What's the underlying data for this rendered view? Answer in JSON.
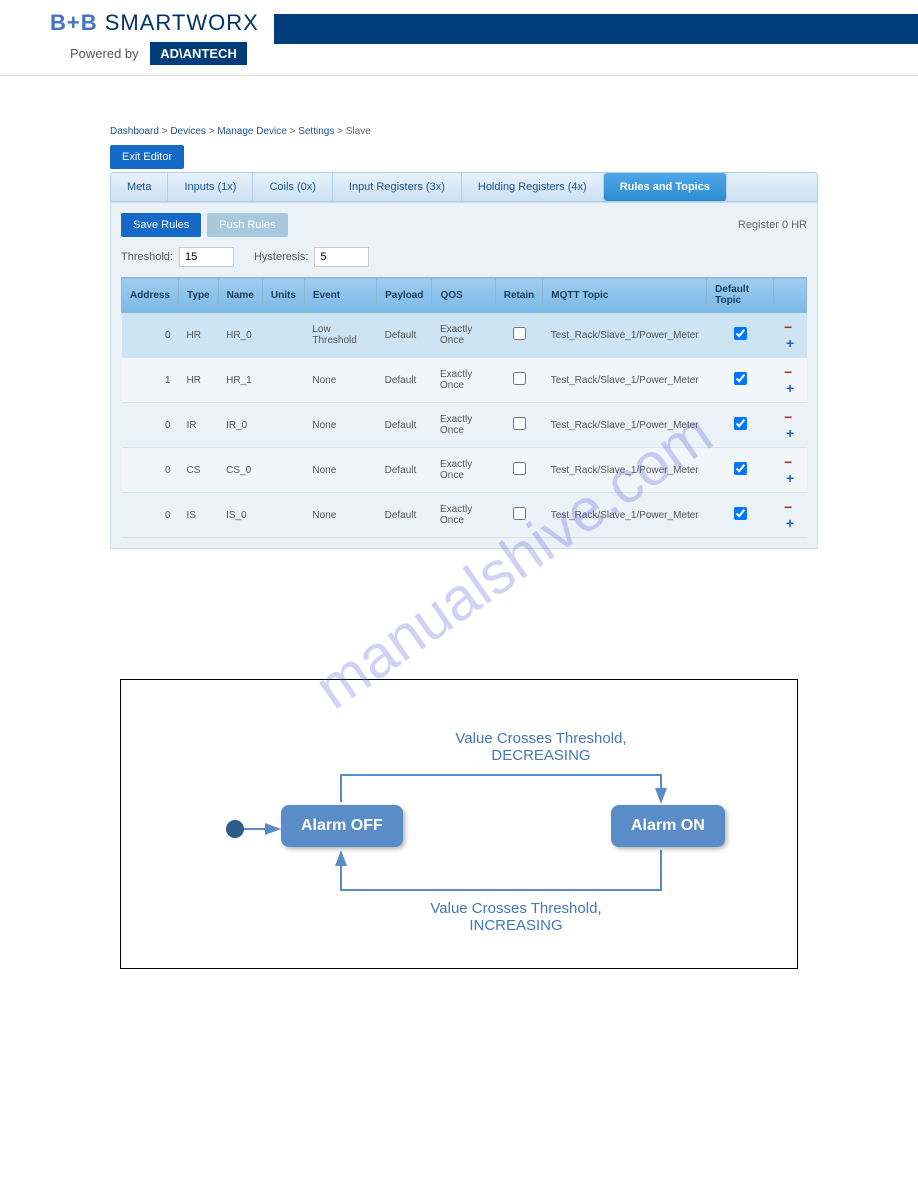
{
  "header": {
    "logo_prefix": "B+B",
    "logo_main": "SMARTWORX",
    "powered_by": "Powered by",
    "advantech": "AD\\ANTECH"
  },
  "breadcrumb": {
    "items": [
      "Dashboard",
      "Devices",
      "Manage Device",
      "Settings",
      "Slave"
    ]
  },
  "buttons": {
    "exit_editor": "Exit Editor",
    "save_rules": "Save Rules",
    "push_rules": "Push Rules"
  },
  "tabs": {
    "items": [
      {
        "label": "Meta",
        "active": false
      },
      {
        "label": "Inputs (1x)",
        "active": false
      },
      {
        "label": "Coils (0x)",
        "active": false
      },
      {
        "label": "Input Registers (3x)",
        "active": false
      },
      {
        "label": "Holding Registers (4x)",
        "active": false
      },
      {
        "label": "Rules and Topics",
        "active": true
      }
    ]
  },
  "register_label": "Register 0 HR",
  "threshold": {
    "label": "Threshold:",
    "value": "15",
    "hyst_label": "Hysteresis:",
    "hyst_value": "5"
  },
  "table": {
    "columns": [
      "Address",
      "Type",
      "Name",
      "Units",
      "Event",
      "Payload",
      "QOS",
      "Retain",
      "MQTT Topic",
      "Default Topic",
      ""
    ],
    "rows": [
      {
        "address": "0",
        "type": "HR",
        "name": "HR_0",
        "units": "",
        "event": "Low Threshold",
        "payload": "Default",
        "qos": "Exactly Once",
        "retain": false,
        "topic": "Test_Rack/Slave_1/Power_Meter",
        "default": true,
        "selected": true
      },
      {
        "address": "1",
        "type": "HR",
        "name": "HR_1",
        "units": "",
        "event": "None",
        "payload": "Default",
        "qos": "Exactly Once",
        "retain": false,
        "topic": "Test_Rack/Slave_1/Power_Meter",
        "default": true,
        "selected": false
      },
      {
        "address": "0",
        "type": "IR",
        "name": "IR_0",
        "units": "",
        "event": "None",
        "payload": "Default",
        "qos": "Exactly Once",
        "retain": false,
        "topic": "Test_Rack/Slave_1/Power_Meter",
        "default": true,
        "selected": false
      },
      {
        "address": "0",
        "type": "CS",
        "name": "CS_0",
        "units": "",
        "event": "None",
        "payload": "Default",
        "qos": "Exactly Once",
        "retain": false,
        "topic": "Test_Rack/Slave_1/Power_Meter",
        "default": true,
        "selected": false
      },
      {
        "address": "0",
        "type": "IS",
        "name": "IS_0",
        "units": "",
        "event": "None",
        "payload": "Default",
        "qos": "Exactly Once",
        "retain": false,
        "topic": "Test_Rack/Slave_1/Power_Meter",
        "default": true,
        "selected": false
      }
    ]
  },
  "diagram": {
    "node_off": "Alarm OFF",
    "node_on": "Alarm ON",
    "label_top": "Value Crosses Threshold,\nDECREASING",
    "label_bottom": "Value Crosses Threshold,\nINCREASING",
    "arrow_color": "#5a8cc7",
    "text_color": "#4178b8"
  },
  "watermark": "manualshive.com"
}
